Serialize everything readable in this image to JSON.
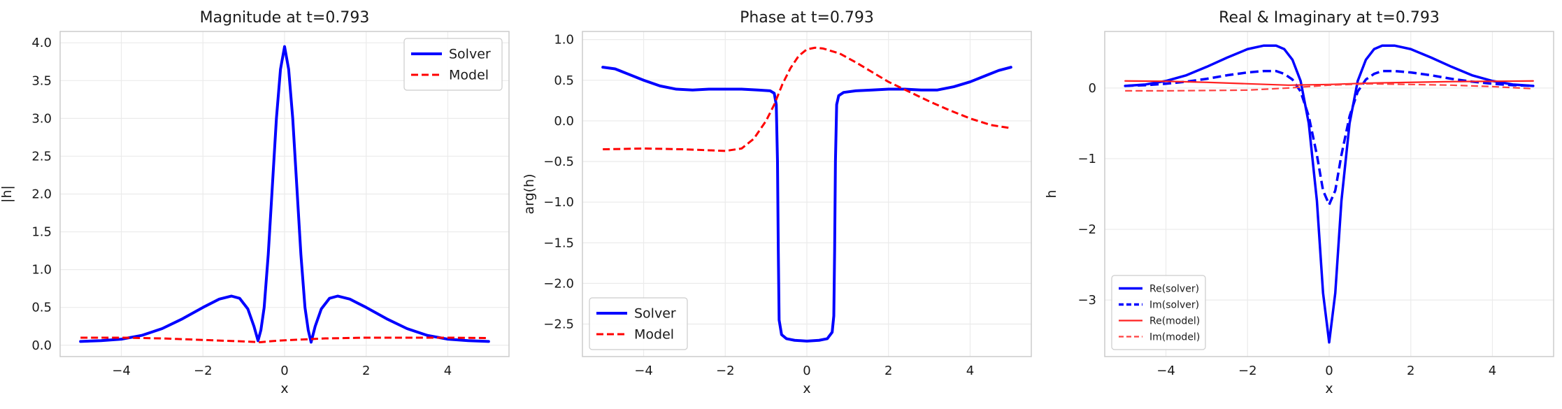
{
  "chart_data": [
    {
      "type": "line",
      "title": "Magnitude at t=0.793",
      "xlabel": "x",
      "ylabel": "|h|",
      "xlim": [
        -5.5,
        5.5
      ],
      "ylim": [
        -0.15,
        4.15
      ],
      "xticks": [
        -4,
        -2,
        0,
        2,
        4
      ],
      "xtick_labels": [
        "−4",
        "−2",
        "0",
        "2",
        "4"
      ],
      "yticks": [
        0,
        0.5,
        1,
        1.5,
        2,
        2.5,
        3,
        3.5,
        4
      ],
      "ytick_labels": [
        "0.0",
        "0.5",
        "1.0",
        "1.5",
        "2.0",
        "2.5",
        "3.0",
        "3.5",
        "4.0"
      ],
      "grid": true,
      "legend": {
        "position": "top-right",
        "size": "large"
      },
      "series": [
        {
          "name": "Solver",
          "color": "#0000ff",
          "style": "solid",
          "width": 4,
          "points": [
            [
              -5,
              0.05
            ],
            [
              -4.5,
              0.06
            ],
            [
              -4,
              0.08
            ],
            [
              -3.5,
              0.13
            ],
            [
              -3,
              0.22
            ],
            [
              -2.5,
              0.35
            ],
            [
              -2,
              0.5
            ],
            [
              -1.6,
              0.61
            ],
            [
              -1.3,
              0.65
            ],
            [
              -1.1,
              0.62
            ],
            [
              -0.9,
              0.48
            ],
            [
              -0.75,
              0.25
            ],
            [
              -0.65,
              0.06
            ],
            [
              -0.58,
              0.2
            ],
            [
              -0.5,
              0.5
            ],
            [
              -0.4,
              1.2
            ],
            [
              -0.3,
              2.1
            ],
            [
              -0.2,
              3.0
            ],
            [
              -0.1,
              3.65
            ],
            [
              0,
              3.95
            ],
            [
              0.1,
              3.65
            ],
            [
              0.2,
              3.0
            ],
            [
              0.3,
              2.1
            ],
            [
              0.4,
              1.2
            ],
            [
              0.5,
              0.5
            ],
            [
              0.58,
              0.2
            ],
            [
              0.65,
              0.04
            ],
            [
              0.75,
              0.25
            ],
            [
              0.9,
              0.48
            ],
            [
              1.1,
              0.62
            ],
            [
              1.3,
              0.65
            ],
            [
              1.6,
              0.61
            ],
            [
              2,
              0.5
            ],
            [
              2.5,
              0.35
            ],
            [
              3,
              0.22
            ],
            [
              3.5,
              0.13
            ],
            [
              4,
              0.08
            ],
            [
              4.5,
              0.06
            ],
            [
              5,
              0.05
            ]
          ]
        },
        {
          "name": "Model",
          "color": "#ff0000",
          "style": "dashed",
          "width": 3,
          "points": [
            [
              -5,
              0.1
            ],
            [
              -4,
              0.1
            ],
            [
              -3,
              0.09
            ],
            [
              -2,
              0.07
            ],
            [
              -1,
              0.05
            ],
            [
              -0.6,
              0.04
            ],
            [
              -0.3,
              0.055
            ],
            [
              0,
              0.065
            ],
            [
              1,
              0.09
            ],
            [
              2,
              0.1
            ],
            [
              3,
              0.1
            ],
            [
              4,
              0.1
            ],
            [
              5,
              0.095
            ]
          ]
        }
      ]
    },
    {
      "type": "line",
      "title": "Phase at t=0.793",
      "xlabel": "x",
      "ylabel": "arg(h)",
      "xlim": [
        -5.5,
        5.5
      ],
      "ylim": [
        -2.9,
        1.1
      ],
      "xticks": [
        -4,
        -2,
        0,
        2,
        4
      ],
      "xtick_labels": [
        "−4",
        "−2",
        "0",
        "2",
        "4"
      ],
      "yticks": [
        -2.5,
        -2,
        -1.5,
        -1,
        -0.5,
        0,
        0.5,
        1
      ],
      "ytick_labels": [
        "−2.5",
        "−2.0",
        "−1.5",
        "−1.0",
        "−0.5",
        "0.0",
        "0.5",
        "1.0"
      ],
      "grid": true,
      "legend": {
        "position": "bottom-left",
        "size": "large"
      },
      "series": [
        {
          "name": "Solver",
          "color": "#0000ff",
          "style": "solid",
          "width": 4,
          "points": [
            [
              -5,
              0.66
            ],
            [
              -4.7,
              0.64
            ],
            [
              -4.4,
              0.58
            ],
            [
              -4,
              0.5
            ],
            [
              -3.6,
              0.43
            ],
            [
              -3.2,
              0.39
            ],
            [
              -2.8,
              0.38
            ],
            [
              -2.4,
              0.39
            ],
            [
              -2,
              0.39
            ],
            [
              -1.6,
              0.39
            ],
            [
              -1.2,
              0.38
            ],
            [
              -0.9,
              0.37
            ],
            [
              -0.8,
              0.34
            ],
            [
              -0.75,
              0.2
            ],
            [
              -0.72,
              -0.5
            ],
            [
              -0.7,
              -1.6
            ],
            [
              -0.68,
              -2.45
            ],
            [
              -0.62,
              -2.63
            ],
            [
              -0.5,
              -2.68
            ],
            [
              -0.3,
              -2.7
            ],
            [
              0,
              -2.71
            ],
            [
              0.3,
              -2.7
            ],
            [
              0.5,
              -2.68
            ],
            [
              0.62,
              -2.6
            ],
            [
              0.66,
              -2.4
            ],
            [
              0.68,
              -1.6
            ],
            [
              0.7,
              -0.5
            ],
            [
              0.73,
              0.2
            ],
            [
              0.78,
              0.31
            ],
            [
              0.9,
              0.35
            ],
            [
              1.2,
              0.37
            ],
            [
              1.6,
              0.38
            ],
            [
              2,
              0.39
            ],
            [
              2.4,
              0.39
            ],
            [
              2.8,
              0.38
            ],
            [
              3.2,
              0.38
            ],
            [
              3.6,
              0.42
            ],
            [
              4,
              0.48
            ],
            [
              4.4,
              0.56
            ],
            [
              4.7,
              0.62
            ],
            [
              5,
              0.66
            ]
          ]
        },
        {
          "name": "Model",
          "color": "#ff0000",
          "style": "dashed",
          "width": 3,
          "points": [
            [
              -5,
              -0.35
            ],
            [
              -4,
              -0.34
            ],
            [
              -3,
              -0.35
            ],
            [
              -2,
              -0.37
            ],
            [
              -1.6,
              -0.34
            ],
            [
              -1.3,
              -0.22
            ],
            [
              -1,
              0.0
            ],
            [
              -0.8,
              0.2
            ],
            [
              -0.6,
              0.45
            ],
            [
              -0.4,
              0.65
            ],
            [
              -0.2,
              0.8
            ],
            [
              0,
              0.88
            ],
            [
              0.2,
              0.9
            ],
            [
              0.4,
              0.89
            ],
            [
              0.8,
              0.83
            ],
            [
              1.2,
              0.72
            ],
            [
              1.6,
              0.6
            ],
            [
              2,
              0.48
            ],
            [
              2.5,
              0.36
            ],
            [
              3,
              0.24
            ],
            [
              3.5,
              0.13
            ],
            [
              4,
              0.03
            ],
            [
              4.5,
              -0.05
            ],
            [
              5,
              -0.09
            ]
          ]
        }
      ]
    },
    {
      "type": "line",
      "title": "Real & Imaginary at t=0.793",
      "xlabel": "x",
      "ylabel": "h",
      "xlim": [
        -5.5,
        5.5
      ],
      "ylim": [
        -3.8,
        0.8
      ],
      "xticks": [
        -4,
        -2,
        0,
        2,
        4
      ],
      "xtick_labels": [
        "−4",
        "−2",
        "0",
        "2",
        "4"
      ],
      "yticks": [
        -3,
        -2,
        -1,
        0
      ],
      "ytick_labels": [
        "−3",
        "−2",
        "−1",
        "0"
      ],
      "grid": true,
      "legend": {
        "position": "bottom-left",
        "size": "small"
      },
      "series": [
        {
          "name": "Re(solver)",
          "color": "#0000ff",
          "style": "solid",
          "width": 3.5,
          "points": [
            [
              -5,
              0.03
            ],
            [
              -4.5,
              0.05
            ],
            [
              -4,
              0.1
            ],
            [
              -3.5,
              0.18
            ],
            [
              -3,
              0.3
            ],
            [
              -2.5,
              0.43
            ],
            [
              -2,
              0.55
            ],
            [
              -1.6,
              0.6
            ],
            [
              -1.3,
              0.6
            ],
            [
              -1.1,
              0.55
            ],
            [
              -0.9,
              0.4
            ],
            [
              -0.7,
              0.1
            ],
            [
              -0.5,
              -0.5
            ],
            [
              -0.3,
              -1.6
            ],
            [
              -0.15,
              -2.9
            ],
            [
              0,
              -3.6
            ],
            [
              0.15,
              -2.9
            ],
            [
              0.3,
              -1.6
            ],
            [
              0.5,
              -0.5
            ],
            [
              0.7,
              0.1
            ],
            [
              0.9,
              0.4
            ],
            [
              1.1,
              0.55
            ],
            [
              1.3,
              0.6
            ],
            [
              1.6,
              0.6
            ],
            [
              2,
              0.55
            ],
            [
              2.5,
              0.43
            ],
            [
              3,
              0.3
            ],
            [
              3.5,
              0.18
            ],
            [
              4,
              0.1
            ],
            [
              4.5,
              0.05
            ],
            [
              5,
              0.03
            ]
          ]
        },
        {
          "name": "Im(solver)",
          "color": "#0000ff",
          "style": "dashed",
          "width": 3.5,
          "points": [
            [
              -5,
              0.03
            ],
            [
              -4.5,
              0.04
            ],
            [
              -4,
              0.06
            ],
            [
              -3.5,
              0.09
            ],
            [
              -3,
              0.13
            ],
            [
              -2.5,
              0.18
            ],
            [
              -2,
              0.22
            ],
            [
              -1.6,
              0.24
            ],
            [
              -1.3,
              0.24
            ],
            [
              -1.1,
              0.2
            ],
            [
              -0.9,
              0.12
            ],
            [
              -0.7,
              -0.05
            ],
            [
              -0.5,
              -0.4
            ],
            [
              -0.3,
              -0.95
            ],
            [
              -0.15,
              -1.45
            ],
            [
              0,
              -1.65
            ],
            [
              0.15,
              -1.45
            ],
            [
              0.3,
              -0.95
            ],
            [
              0.5,
              -0.4
            ],
            [
              0.7,
              -0.05
            ],
            [
              0.9,
              0.12
            ],
            [
              1.1,
              0.2
            ],
            [
              1.3,
              0.24
            ],
            [
              1.6,
              0.24
            ],
            [
              2,
              0.22
            ],
            [
              2.5,
              0.18
            ],
            [
              3,
              0.13
            ],
            [
              3.5,
              0.09
            ],
            [
              4,
              0.06
            ],
            [
              4.5,
              0.04
            ],
            [
              5,
              0.03
            ]
          ]
        },
        {
          "name": "Re(model)",
          "color": "#ff2020",
          "style": "solid",
          "width": 2.2,
          "points": [
            [
              -5,
              0.1
            ],
            [
              -4,
              0.095
            ],
            [
              -3,
              0.08
            ],
            [
              -2,
              0.06
            ],
            [
              -1,
              0.04
            ],
            [
              0,
              0.05
            ],
            [
              1,
              0.07
            ],
            [
              2,
              0.08
            ],
            [
              3,
              0.09
            ],
            [
              4,
              0.095
            ],
            [
              5,
              0.1
            ]
          ]
        },
        {
          "name": "Im(model)",
          "color": "#ff4040",
          "style": "dashed",
          "width": 2.2,
          "points": [
            [
              -5,
              -0.04
            ],
            [
              -4,
              -0.04
            ],
            [
              -3,
              -0.035
            ],
            [
              -2,
              -0.03
            ],
            [
              -1,
              0.0
            ],
            [
              0,
              0.04
            ],
            [
              1,
              0.06
            ],
            [
              2,
              0.05
            ],
            [
              3,
              0.04
            ],
            [
              4,
              0.02
            ],
            [
              5,
              -0.01
            ]
          ]
        }
      ]
    }
  ]
}
